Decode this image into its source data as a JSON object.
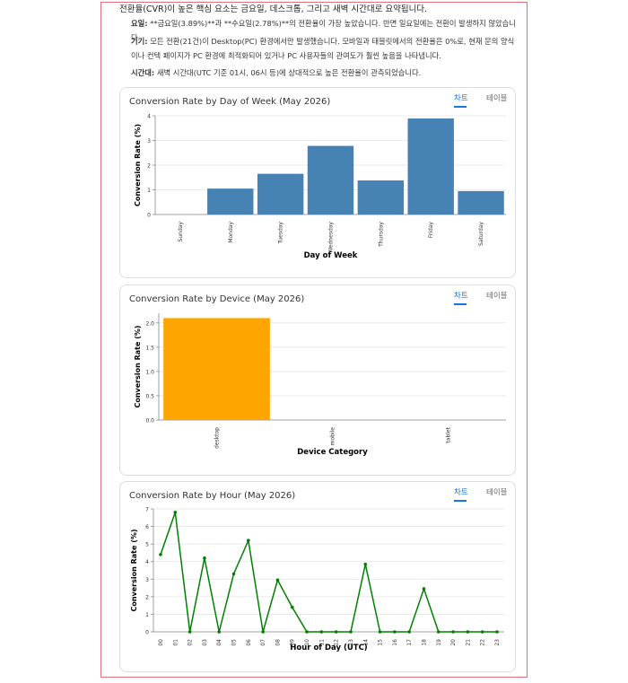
{
  "intro": "전환율(CVR)이 높은 핵심 요소는 금요일, 데스크톱, 그리고 새벽 시간대로 요약됩니다.",
  "bullets": [
    {
      "label": "요일:",
      "text": "**금요일(3.89%)**과 **수요일(2.78%)**의 전환율이 가장 높았습니다. 반면 일요일에는 전환이 발생하지 않았습니다."
    },
    {
      "label": "기기:",
      "text": "모든 전환(21건)이 Desktop(PC) 환경에서만 발생했습니다. 모바일과 태블릿에서의 전환율은 0%로, 현재 문의 양식이나 컨텍 페이지가 PC 환경에 최적화되어 있거나 PC 사용자들의 관여도가 훨씬 높음을 나타냅니다."
    },
    {
      "label": "시간대:",
      "text": "새벽 시간대(UTC 기준 01시, 06시 등)에 상대적으로 높은 전환율이 관측되었습니다."
    }
  ],
  "chart_data": [
    {
      "type": "bar",
      "title": "Conversion Rate by Day of Week (May 2026)",
      "tabs": [
        "차트",
        "테이블"
      ],
      "categories": [
        "Sunday",
        "Monday",
        "Tuesday",
        "Wednesday",
        "Thursday",
        "Friday",
        "Saturday"
      ],
      "values": [
        0,
        1.05,
        1.65,
        2.78,
        1.38,
        3.89,
        0.95
      ],
      "color": "#4682b4",
      "xlabel": "Day of Week",
      "ylabel": "Conversion Rate (%)",
      "ylim": [
        0,
        4
      ],
      "yticks": [
        0,
        1,
        2,
        3,
        4
      ],
      "grid": true
    },
    {
      "type": "bar",
      "title": "Conversion Rate by Device (May 2026)",
      "tabs": [
        "차트",
        "테이블"
      ],
      "categories": [
        "desktop",
        "mobile",
        "tablet"
      ],
      "values": [
        2.1,
        0,
        0
      ],
      "color": "#ffa500",
      "xlabel": "Device Category",
      "ylabel": "Conversion Rate (%)",
      "ylim": [
        0,
        2.2
      ],
      "yticks": [
        {
          "value": 0,
          "label": "0.0"
        },
        {
          "value": 0.5,
          "label": "0.5"
        },
        {
          "value": 1,
          "label": "1.0"
        },
        {
          "value": 1.5,
          "label": "1.5"
        },
        {
          "value": 2,
          "label": "2.0"
        }
      ],
      "grid": true
    },
    {
      "type": "line",
      "title": "Conversion Rate by Hour (May 2026)",
      "tabs": [
        "차트",
        "테이블"
      ],
      "categories": [
        "00",
        "01",
        "02",
        "03",
        "04",
        "05",
        "06",
        "07",
        "08",
        "09",
        "10",
        "11",
        "12",
        "13",
        "14",
        "15",
        "16",
        "17",
        "18",
        "19",
        "20",
        "21",
        "22",
        "23"
      ],
      "values": [
        4.4,
        6.8,
        0,
        4.2,
        0,
        3.3,
        5.2,
        0,
        2.95,
        1.4,
        0,
        0,
        0,
        0,
        3.85,
        0,
        0,
        0,
        2.45,
        0,
        0,
        0,
        0,
        0
      ],
      "color": "#008000",
      "xlabel": "Hour of Day (UTC)",
      "ylabel": "Conversion Rate (%)",
      "ylim": [
        0,
        7
      ],
      "yticks": [
        0,
        1,
        2,
        3,
        4,
        5,
        6,
        7
      ],
      "grid": true
    }
  ]
}
